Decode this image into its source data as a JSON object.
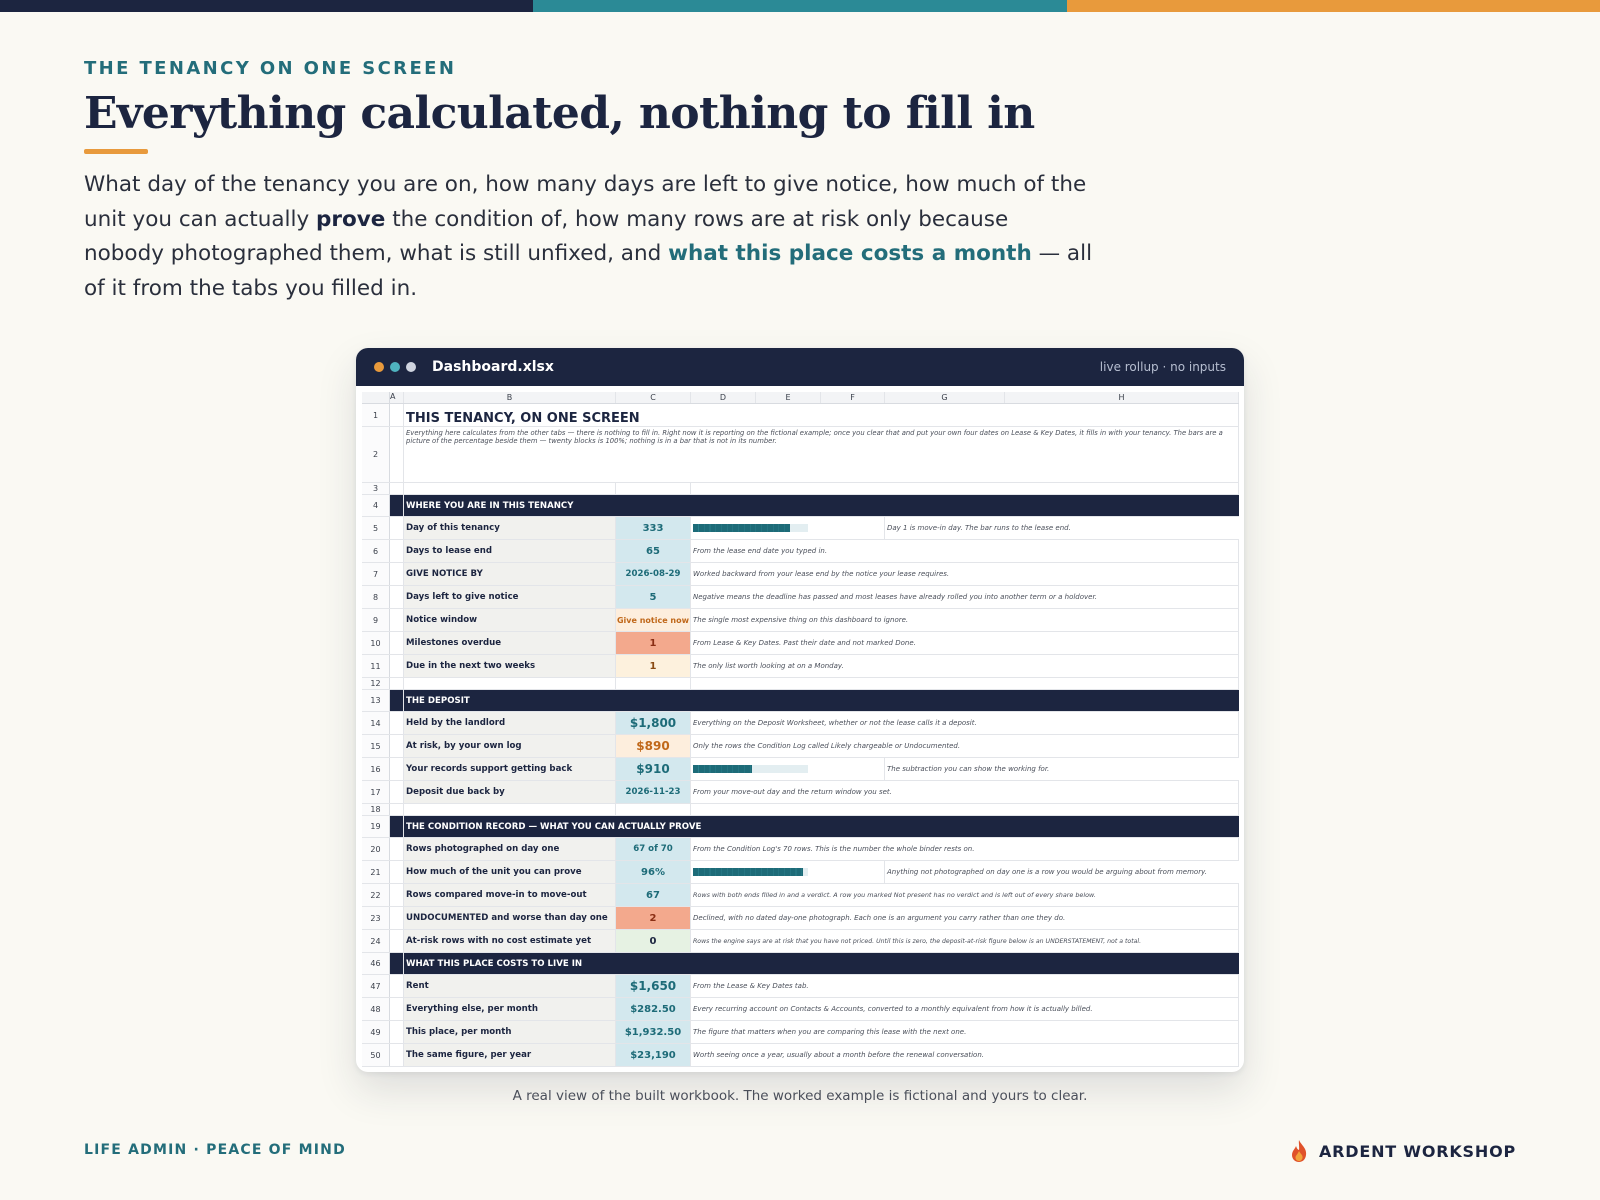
{
  "colors": {
    "navy": "#1c2540",
    "teal": "#2b8a96",
    "orange": "#e89a3c"
  },
  "eyebrow": "THE TENANCY ON ONE SCREEN",
  "headline": "Everything calculated, nothing to fill in",
  "lede": {
    "part1": "What day of the tenancy you are on, how many days are left to give notice, how much of the unit you can actually ",
    "bold": "prove",
    "part2": " the condition of, how many rows are at risk only because nobody photographed them, what is still unfixed, and ",
    "highlight": "what this place costs a month",
    "part3": " — all of it from the tabs you filled in."
  },
  "window": {
    "title": "Dashboard.xlsx",
    "meta": "live rollup · no inputs",
    "dots": [
      "#e89a3c",
      "#4fb3bf",
      "#cfd4df"
    ]
  },
  "sheet": {
    "columns": [
      "A",
      "B",
      "C",
      "D",
      "E",
      "F",
      "G",
      "H"
    ],
    "title": "THIS TENANCY, ON ONE SCREEN",
    "intro": "Everything here calculates from the other tabs — there is nothing to fill in. Right now it is reporting on the fictional example; once you clear that and put your own four dates on Lease & Key Dates, it fills in with your tenancy. The bars are a picture of the percentage beside them — twenty blocks is 100%; nothing is in a bar that is not in its number.",
    "sections": {
      "s1": "WHERE YOU ARE IN THIS TENANCY",
      "s2": "THE DEPOSIT",
      "s3": "THE CONDITION RECORD — WHAT YOU CAN ACTUALLY PROVE",
      "s4": "WHAT THIS PLACE COSTS TO LIVE IN"
    },
    "rows": {
      "r5": {
        "label": "Day of this tenancy",
        "value": "333",
        "note": "Day 1 is move-in day. The bar runs to the lease end.",
        "bar": 0.84
      },
      "r6": {
        "label": "Days to lease end",
        "value": "65",
        "note": "From the lease end date you typed in."
      },
      "r7": {
        "label": "GIVE NOTICE BY",
        "value": "2026-08-29",
        "note": "Worked backward from your lease end by the notice your lease requires."
      },
      "r8": {
        "label": "Days left to give notice",
        "value": "5",
        "note": "Negative means the deadline has passed and most leases have already rolled you into another term or a holdover."
      },
      "r9": {
        "label": "Notice window",
        "value": "Give notice now",
        "note": "The single most expensive thing on this dashboard to ignore."
      },
      "r10": {
        "label": "Milestones overdue",
        "value": "1",
        "note": "From Lease & Key Dates. Past their date and not marked Done."
      },
      "r11": {
        "label": "Due in the next two weeks",
        "value": "1",
        "note": "The only list worth looking at on a Monday."
      },
      "r14": {
        "label": "Held by the landlord",
        "value": "$1,800",
        "note": "Everything on the Deposit Worksheet, whether or not the lease calls it a deposit."
      },
      "r15": {
        "label": "At risk, by your own log",
        "value": "$890",
        "note": "Only the rows the Condition Log called Likely chargeable or Undocumented."
      },
      "r16": {
        "label": "Your records support getting back",
        "value": "$910",
        "note": "The subtraction you can show the working for.",
        "bar": 0.51
      },
      "r17": {
        "label": "Deposit due back by",
        "value": "2026-11-23",
        "note": "From your move-out day and the return window you set."
      },
      "r20": {
        "label": "Rows photographed on day one",
        "value": "67 of 70",
        "note": "From the Condition Log's 70 rows. This is the number the whole binder rests on."
      },
      "r21": {
        "label": "How much of the unit you can prove",
        "value": "96%",
        "note": "Anything not photographed on day one is a row you would be arguing about from memory.",
        "bar": 0.96
      },
      "r22": {
        "label": "Rows compared move-in to move-out",
        "value": "67",
        "note": "Rows with both ends filled in and a verdict. A row you marked Not present has no verdict and is left out of every share below."
      },
      "r23": {
        "label": "UNDOCUMENTED and worse than day one",
        "value": "2",
        "note": "Declined, with no dated day-one photograph. Each one is an argument you carry rather than one they do."
      },
      "r24": {
        "label": "At-risk rows with no cost estimate yet",
        "value": "0",
        "note": "Rows the engine says are at risk that you have not priced. Until this is zero, the deposit-at-risk figure below is an UNDERSTATEMENT, not a total."
      },
      "r47": {
        "label": "Rent",
        "value": "$1,650",
        "note": "From the Lease & Key Dates tab."
      },
      "r48": {
        "label": "Everything else, per month",
        "value": "$282.50",
        "note": "Every recurring account on Contacts & Accounts, converted to a monthly equivalent from how it is actually billed."
      },
      "r49": {
        "label": "This place, per month",
        "value": "$1,932.50",
        "note": "The figure that matters when you are comparing this lease with the next one."
      },
      "r50": {
        "label": "The same figure, per year",
        "value": "$23,190",
        "note": "Worth seeing once a year, usually about a month before the renewal conversation."
      }
    }
  },
  "caption": "A real view of the built workbook. The worked example is fictional and yours to clear.",
  "footer": {
    "left": "LIFE ADMIN · PEACE OF MIND",
    "brand": "ARDENT WORKSHOP"
  }
}
